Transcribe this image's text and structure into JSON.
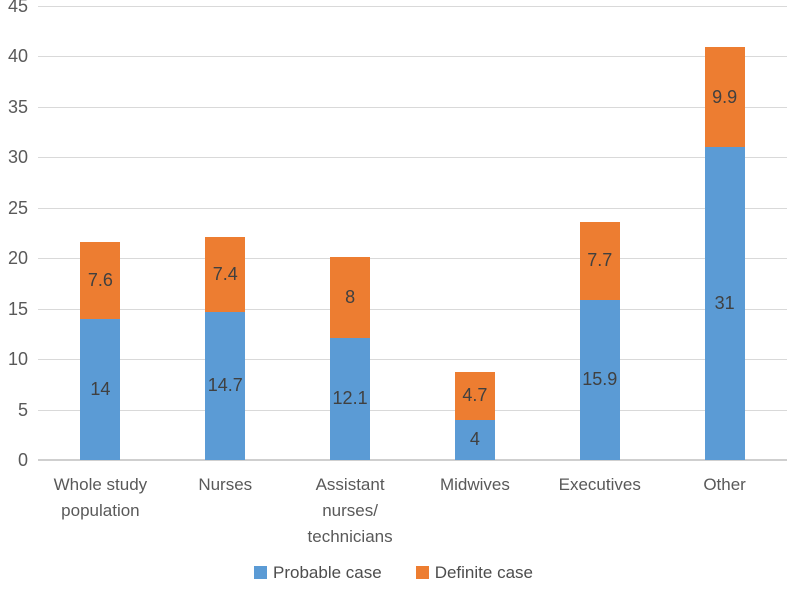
{
  "chart_data": {
    "type": "bar",
    "stacked": true,
    "title": "",
    "xlabel": "",
    "ylabel": "",
    "categories": [
      "Whole study\npopulation",
      "Nurses",
      "Assistant\nnurses/\ntechnicians",
      "Midwives",
      "Executives",
      "Other"
    ],
    "series": [
      {
        "name": "Probable case",
        "color": "#5B9BD5",
        "values": [
          14,
          14.7,
          12.1,
          4,
          15.9,
          31
        ]
      },
      {
        "name": "Definite case",
        "color": "#ED7D31",
        "values": [
          7.6,
          7.4,
          8,
          4.7,
          7.7,
          9.9
        ]
      }
    ],
    "stack_totals": [
      21.6,
      22.1,
      20.1,
      8.7,
      23.6,
      40.9
    ],
    "y_axis": {
      "min": 0,
      "max": 45,
      "step": 5,
      "ticks": [
        "0",
        "5",
        "10",
        "15",
        "20",
        "25",
        "30",
        "35",
        "40",
        "45"
      ]
    },
    "grid": true,
    "legend_position": "bottom",
    "legend_entries": [
      "Probable case",
      "Definite case"
    ],
    "data_labels_shown": true,
    "colors": {
      "probable_case": "#5B9BD5",
      "definite_case": "#ED7D31",
      "gridline": "#D9D9D9",
      "axis_line": "#CFCFCF",
      "tick_text": "#595959",
      "category_text": "#595959",
      "data_label_text": "#404040",
      "legend_text": "#4D4D4D",
      "background": "#FFFFFF"
    }
  }
}
